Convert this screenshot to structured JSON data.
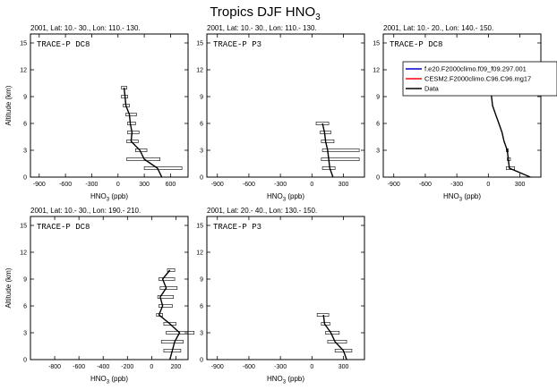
{
  "figure": {
    "title_main": "Tropics DJF HNO",
    "title_sub": "3"
  },
  "legend": {
    "items": [
      {
        "label": "f.e20.F2000climo.f09_f09.297.001",
        "color": "#0000cc"
      },
      {
        "label": "CESM2.F2000climo.C96.C96.mg17",
        "color": "#ff0000"
      },
      {
        "label": "Data",
        "color": "#000000"
      }
    ]
  },
  "chart_data": [
    {
      "type": "line",
      "title": "2001, Lat: 10.- 30., Lon: 110.- 130.",
      "campaign": "TRACE-P DC8",
      "xlabel_main": "HNO",
      "xlabel_sub": "3",
      "xlabel_unit": " (ppb)",
      "ylabel": "Altitude (km)",
      "xlim": [
        -1000,
        800
      ],
      "ylim": [
        0,
        16
      ],
      "xticks": [
        -900,
        -600,
        -300,
        0,
        300,
        600
      ],
      "yticks": [
        0,
        3,
        6,
        9,
        12,
        15
      ],
      "series": [
        {
          "name": "Data",
          "color": "#000000",
          "points": [
            {
              "alt": 0,
              "val": 500,
              "lo": 500,
              "hi": 500
            },
            {
              "alt": 1,
              "val": 450,
              "lo": 300,
              "hi": 730
            },
            {
              "alt": 2,
              "val": 300,
              "lo": 100,
              "hi": 480
            },
            {
              "alt": 3,
              "val": 250,
              "lo": 200,
              "hi": 330
            },
            {
              "alt": 4,
              "val": 150,
              "lo": 100,
              "hi": 230
            },
            {
              "alt": 5,
              "val": 160,
              "lo": 110,
              "hi": 240
            },
            {
              "alt": 6,
              "val": 140,
              "lo": 110,
              "hi": 200
            },
            {
              "alt": 7,
              "val": 130,
              "lo": 90,
              "hi": 210
            },
            {
              "alt": 8,
              "val": 90,
              "lo": 60,
              "hi": 130
            },
            {
              "alt": 9,
              "val": 80,
              "lo": 40,
              "hi": 110
            },
            {
              "alt": 10,
              "val": 70,
              "lo": 40,
              "hi": 100
            }
          ]
        }
      ]
    },
    {
      "type": "line",
      "title": "2001, Lat: 10.- 30., Lon: 110.- 130.",
      "campaign": "TRACE-P P3",
      "xlabel_main": "HNO",
      "xlabel_sub": "3",
      "xlabel_unit": " (ppb)",
      "ylabel": "",
      "xlim": [
        -1000,
        500
      ],
      "ylim": [
        0,
        16
      ],
      "xticks": [
        -900,
        -600,
        -300,
        0,
        300
      ],
      "yticks": [
        0,
        3,
        6,
        9,
        12,
        15
      ],
      "series": [
        {
          "name": "Data",
          "color": "#000000",
          "points": [
            {
              "alt": 0,
              "val": 200,
              "lo": 200,
              "hi": 200
            },
            {
              "alt": 1,
              "val": 170,
              "lo": 100,
              "hi": 220
            },
            {
              "alt": 2,
              "val": 160,
              "lo": 90,
              "hi": 450
            },
            {
              "alt": 3,
              "val": 150,
              "lo": 100,
              "hi": 450
            },
            {
              "alt": 4,
              "val": 130,
              "lo": 90,
              "hi": 210
            },
            {
              "alt": 5,
              "val": 120,
              "lo": 80,
              "hi": 180
            },
            {
              "alt": 6,
              "val": 100,
              "lo": 40,
              "hi": 160
            }
          ]
        }
      ]
    },
    {
      "type": "line",
      "title": "2001, Lat: 10.- 20., Lon: 140.- 150.",
      "campaign": "TRACE-P DC8",
      "xlabel_main": "HNO",
      "xlabel_sub": "3",
      "xlabel_unit": " (ppb)",
      "ylabel": "",
      "xlim": [
        -1000,
        500
      ],
      "ylim": [
        0,
        16
      ],
      "xticks": [
        -900,
        -600,
        -300,
        0,
        300
      ],
      "yticks": [
        0,
        3,
        6,
        9,
        12,
        15
      ],
      "series": [
        {
          "name": "Data",
          "color": "#000000",
          "points": [
            {
              "alt": 0,
              "val": 400,
              "lo": 400,
              "hi": 400
            },
            {
              "alt": 1,
              "val": 200,
              "lo": 170,
              "hi": 250
            },
            {
              "alt": 2,
              "val": 190,
              "lo": 180,
              "hi": 210
            },
            {
              "alt": 3,
              "val": 180,
              "lo": 170,
              "hi": 190
            },
            {
              "alt": 4,
              "val": 150,
              "lo": 150,
              "hi": 150
            },
            {
              "alt": 5,
              "val": 130,
              "lo": 130,
              "hi": 130
            },
            {
              "alt": 6,
              "val": 100,
              "lo": 100,
              "hi": 100
            },
            {
              "alt": 7,
              "val": 70,
              "lo": 70,
              "hi": 70
            },
            {
              "alt": 8,
              "val": 40,
              "lo": 40,
              "hi": 40
            },
            {
              "alt": 9,
              "val": 30,
              "lo": 30,
              "hi": 30
            },
            {
              "alt": 10,
              "val": 20,
              "lo": 20,
              "hi": 20
            }
          ]
        }
      ]
    },
    {
      "type": "line",
      "title": "2001, Lat: 10.- 30., Lon: 190.- 210.",
      "campaign": "TRACE-P DC8",
      "xlabel_main": "HNO",
      "xlabel_sub": "3",
      "xlabel_unit": " (ppb)",
      "ylabel": "Altitude (km)",
      "xlim": [
        -1000,
        300
      ],
      "ylim": [
        0,
        16
      ],
      "xticks": [
        -800,
        -600,
        -400,
        -200,
        0,
        200
      ],
      "yticks": [
        0,
        3,
        6,
        9,
        12,
        15
      ],
      "series": [
        {
          "name": "Data",
          "color": "#000000",
          "points": [
            {
              "alt": 0,
              "val": 150,
              "lo": 150,
              "hi": 150
            },
            {
              "alt": 1,
              "val": 170,
              "lo": 100,
              "hi": 240
            },
            {
              "alt": 2,
              "val": 190,
              "lo": 80,
              "hi": 260
            },
            {
              "alt": 3,
              "val": 230,
              "lo": 120,
              "hi": 350
            },
            {
              "alt": 4,
              "val": 150,
              "lo": 100,
              "hi": 200
            },
            {
              "alt": 5,
              "val": 60,
              "lo": 40,
              "hi": 90
            },
            {
              "alt": 6,
              "val": 90,
              "lo": 60,
              "hi": 170
            },
            {
              "alt": 7,
              "val": 70,
              "lo": 50,
              "hi": 180
            },
            {
              "alt": 8,
              "val": 120,
              "lo": 70,
              "hi": 210
            },
            {
              "alt": 9,
              "val": 90,
              "lo": 60,
              "hi": 190
            },
            {
              "alt": 10,
              "val": 150,
              "lo": 130,
              "hi": 190
            }
          ]
        }
      ]
    },
    {
      "type": "line",
      "title": "2001, Lat: 20.- 40., Lon: 130.- 150.",
      "campaign": "TRACE-P P3",
      "xlabel_main": "HNO",
      "xlabel_sub": "3",
      "xlabel_unit": " (ppb)",
      "ylabel": "",
      "xlim": [
        -1000,
        500
      ],
      "ylim": [
        0,
        16
      ],
      "xticks": [
        -900,
        -600,
        -300,
        0,
        300
      ],
      "yticks": [
        0,
        3,
        6,
        9,
        12,
        15
      ],
      "series": [
        {
          "name": "Data",
          "color": "#000000",
          "points": [
            {
              "alt": 0,
              "val": 330,
              "lo": 330,
              "hi": 330
            },
            {
              "alt": 1,
              "val": 300,
              "lo": 220,
              "hi": 380
            },
            {
              "alt": 2,
              "val": 220,
              "lo": 150,
              "hi": 330
            },
            {
              "alt": 3,
              "val": 180,
              "lo": 130,
              "hi": 260
            },
            {
              "alt": 4,
              "val": 120,
              "lo": 90,
              "hi": 170
            },
            {
              "alt": 5,
              "val": 110,
              "lo": 50,
              "hi": 160
            }
          ]
        }
      ]
    }
  ]
}
